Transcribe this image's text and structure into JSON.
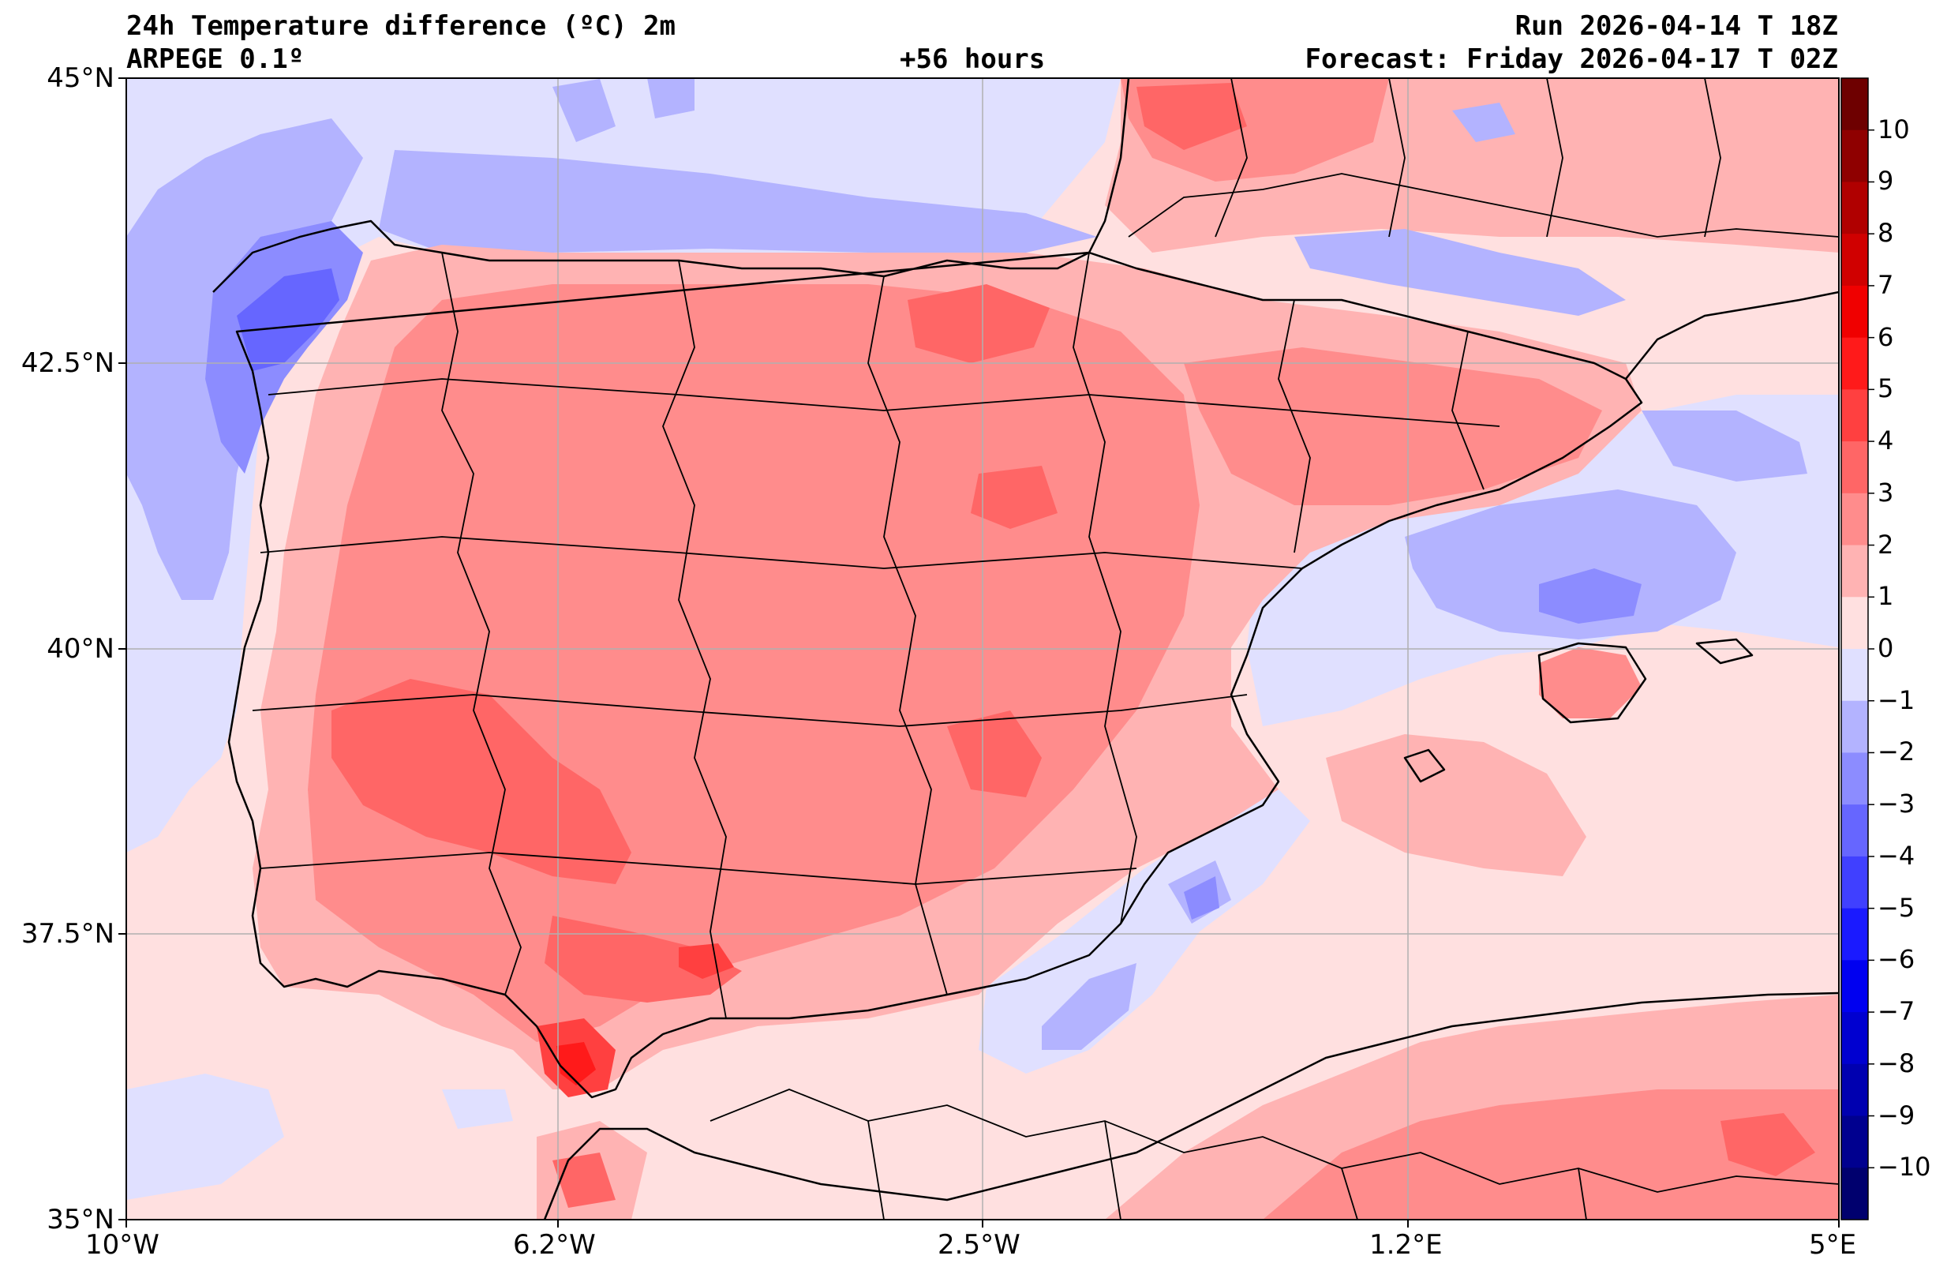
{
  "header": {
    "title": "24h Temperature difference (ºC) 2m",
    "model": "ARPEGE 0.1º",
    "lead_time": "+56 hours",
    "run": "Run 2026-04-14 T 18Z",
    "forecast": "Forecast: Friday 2026-04-17 T 02Z"
  },
  "axes": {
    "lat_labels": [
      "45°N",
      "42.5°N",
      "40°N",
      "37.5°N",
      "35°N"
    ],
    "lon_labels": [
      "10°W",
      "6.2°W",
      "2.5°W",
      "1.2°E",
      "5°E"
    ]
  },
  "colorbar": {
    "labels": [
      "10",
      "9",
      "8",
      "7",
      "6",
      "5",
      "4",
      "3",
      "2",
      "1",
      "0",
      "−1",
      "−2",
      "−3",
      "−4",
      "−5",
      "−6",
      "−7",
      "−8",
      "−9",
      "−10"
    ],
    "colors": [
      "#6e0000",
      "#8f0000",
      "#b00000",
      "#d00000",
      "#f00000",
      "#ff1a1a",
      "#ff4040",
      "#ff6666",
      "#ff8c8c",
      "#ffb3b3",
      "#ffe0e0",
      "#e0e0ff",
      "#b3b3ff",
      "#8c8cff",
      "#6666ff",
      "#4040ff",
      "#1a1aff",
      "#0000f0",
      "#0000d0",
      "#0000b0",
      "#00008f",
      "#00006e"
    ]
  },
  "colors": {
    "grid": "#b0b0b0",
    "border": "#000000",
    "background_sea": "#ffe0e0"
  }
}
